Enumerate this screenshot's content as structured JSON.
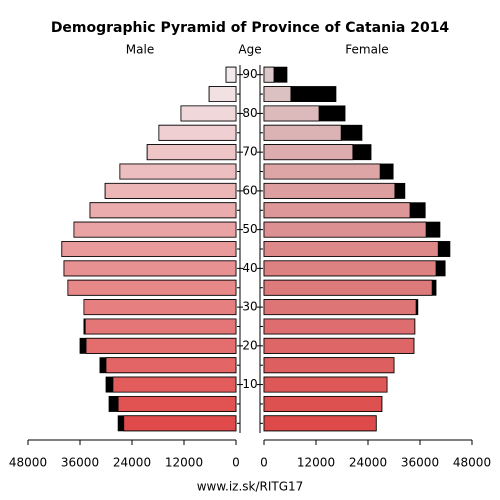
{
  "chart_data": {
    "type": "pyramid",
    "title": "Demographic Pyramid of Province of Catania 2014",
    "left_label": "Male",
    "center_label": "Age",
    "right_label": "Female",
    "source": "www.iz.sk/RITG17",
    "y": [
      0,
      5,
      10,
      15,
      20,
      25,
      30,
      35,
      40,
      45,
      50,
      55,
      60,
      65,
      70,
      75,
      80,
      85,
      90
    ],
    "ylim": [
      -2.5,
      92.5
    ],
    "yticks": [
      10,
      20,
      30,
      40,
      50,
      60,
      70,
      80,
      90
    ],
    "xlim": [
      0,
      48000
    ],
    "xticks": [
      0,
      12000,
      24000,
      36000,
      48000
    ],
    "excess_color": "#000000",
    "series": [
      {
        "name": "Male",
        "colors": [
          "#e04a4a",
          "#f2eaec"
        ],
        "values": [
          27200,
          29300,
          30000,
          31400,
          36000,
          35100,
          35100,
          38800,
          39700,
          40200,
          37400,
          33700,
          30200,
          26800,
          20500,
          17800,
          12700,
          6200,
          2300
        ]
      },
      {
        "name": "Female",
        "colors": [
          "#de4a4a",
          "#dcc8ca"
        ],
        "values": [
          25900,
          27200,
          28400,
          30000,
          34600,
          34800,
          35500,
          39700,
          41800,
          42900,
          40600,
          37200,
          32500,
          29800,
          24700,
          22600,
          18700,
          16600,
          5300
        ]
      }
    ]
  }
}
